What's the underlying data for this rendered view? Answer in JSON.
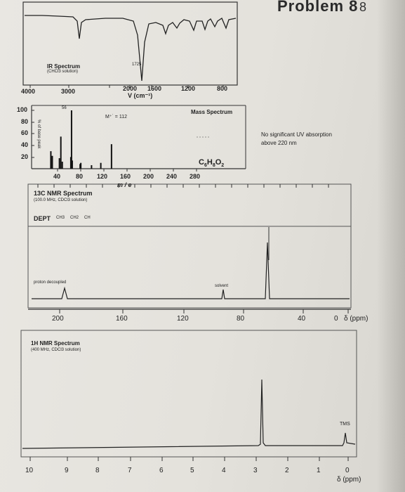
{
  "header": {
    "title": "Problem 8",
    "mark": "8"
  },
  "ir": {
    "title": "IR Spectrum",
    "solvent": "(CHCl3 solution)",
    "peak_label": "1725",
    "axis_ticks": [
      "4000",
      "3000",
      "2000",
      "1600",
      "1200",
      "800"
    ],
    "axis_unit": "V (cm⁻¹)"
  },
  "ms": {
    "title": "Mass Spectrum",
    "y_label": "% of base peak",
    "y_ticks": [
      "100",
      "80",
      "60",
      "40",
      "20"
    ],
    "x_ticks": [
      "40",
      "80",
      "120",
      "160",
      "200",
      "240",
      "280"
    ],
    "x_label": "m / e",
    "base_peak_label": "56",
    "molecular_ion_label": "M⁺˙ = 112",
    "formula": "C6H8O2"
  },
  "uv": {
    "note": "No significant UV absorption above 220 nm"
  },
  "c13": {
    "title": "13C NMR Spectrum",
    "conditions": "(100.0 MHz, CDCl3 solution)",
    "dept_label": "DEPT",
    "dept_items": [
      "CH3",
      "CH2",
      "CH"
    ],
    "decoupled_label": "proton decoupled",
    "solvent_label": "solvent",
    "axis_ticks": [
      "200",
      "160",
      "120",
      "80",
      "40",
      "0"
    ],
    "axis_unit": "δ (ppm)"
  },
  "h1": {
    "title": "1H NMR Spectrum",
    "conditions": "(400 MHz, CDCl3 solution)",
    "tms_label": "TMS",
    "axis_ticks": [
      "10",
      "9",
      "8",
      "7",
      "6",
      "5",
      "4",
      "3",
      "2",
      "1",
      "0"
    ],
    "axis_unit": "δ (ppm)"
  },
  "chart_data": [
    {
      "type": "line",
      "title": "IR Spectrum",
      "xlabel": "V (cm⁻¹)",
      "xlim": [
        4000,
        600
      ],
      "peaks": [
        {
          "x": 1725,
          "label": "1725"
        }
      ]
    },
    {
      "type": "bar",
      "title": "Mass Spectrum",
      "xlabel": "m / e",
      "ylabel": "% of base peak",
      "xlim": [
        0,
        300
      ],
      "ylim": [
        0,
        100
      ],
      "x": [
        27,
        29,
        39,
        41,
        43,
        55,
        56,
        57,
        68,
        69,
        84,
        97,
        112
      ],
      "values": [
        30,
        22,
        18,
        55,
        12,
        20,
        100,
        14,
        8,
        10,
        6,
        10,
        42
      ]
    },
    {
      "type": "line",
      "title": "13C NMR Spectrum",
      "xlabel": "δ (ppm)",
      "xlim": [
        220,
        0
      ],
      "peaks_ppm": [
        175,
        77
      ],
      "dept_signals_ppm": [
        34
      ]
    },
    {
      "type": "line",
      "title": "1H NMR Spectrum",
      "xlabel": "δ (ppm)",
      "xlim": [
        10,
        0
      ],
      "peaks_ppm": [
        3.6,
        0
      ]
    }
  ]
}
